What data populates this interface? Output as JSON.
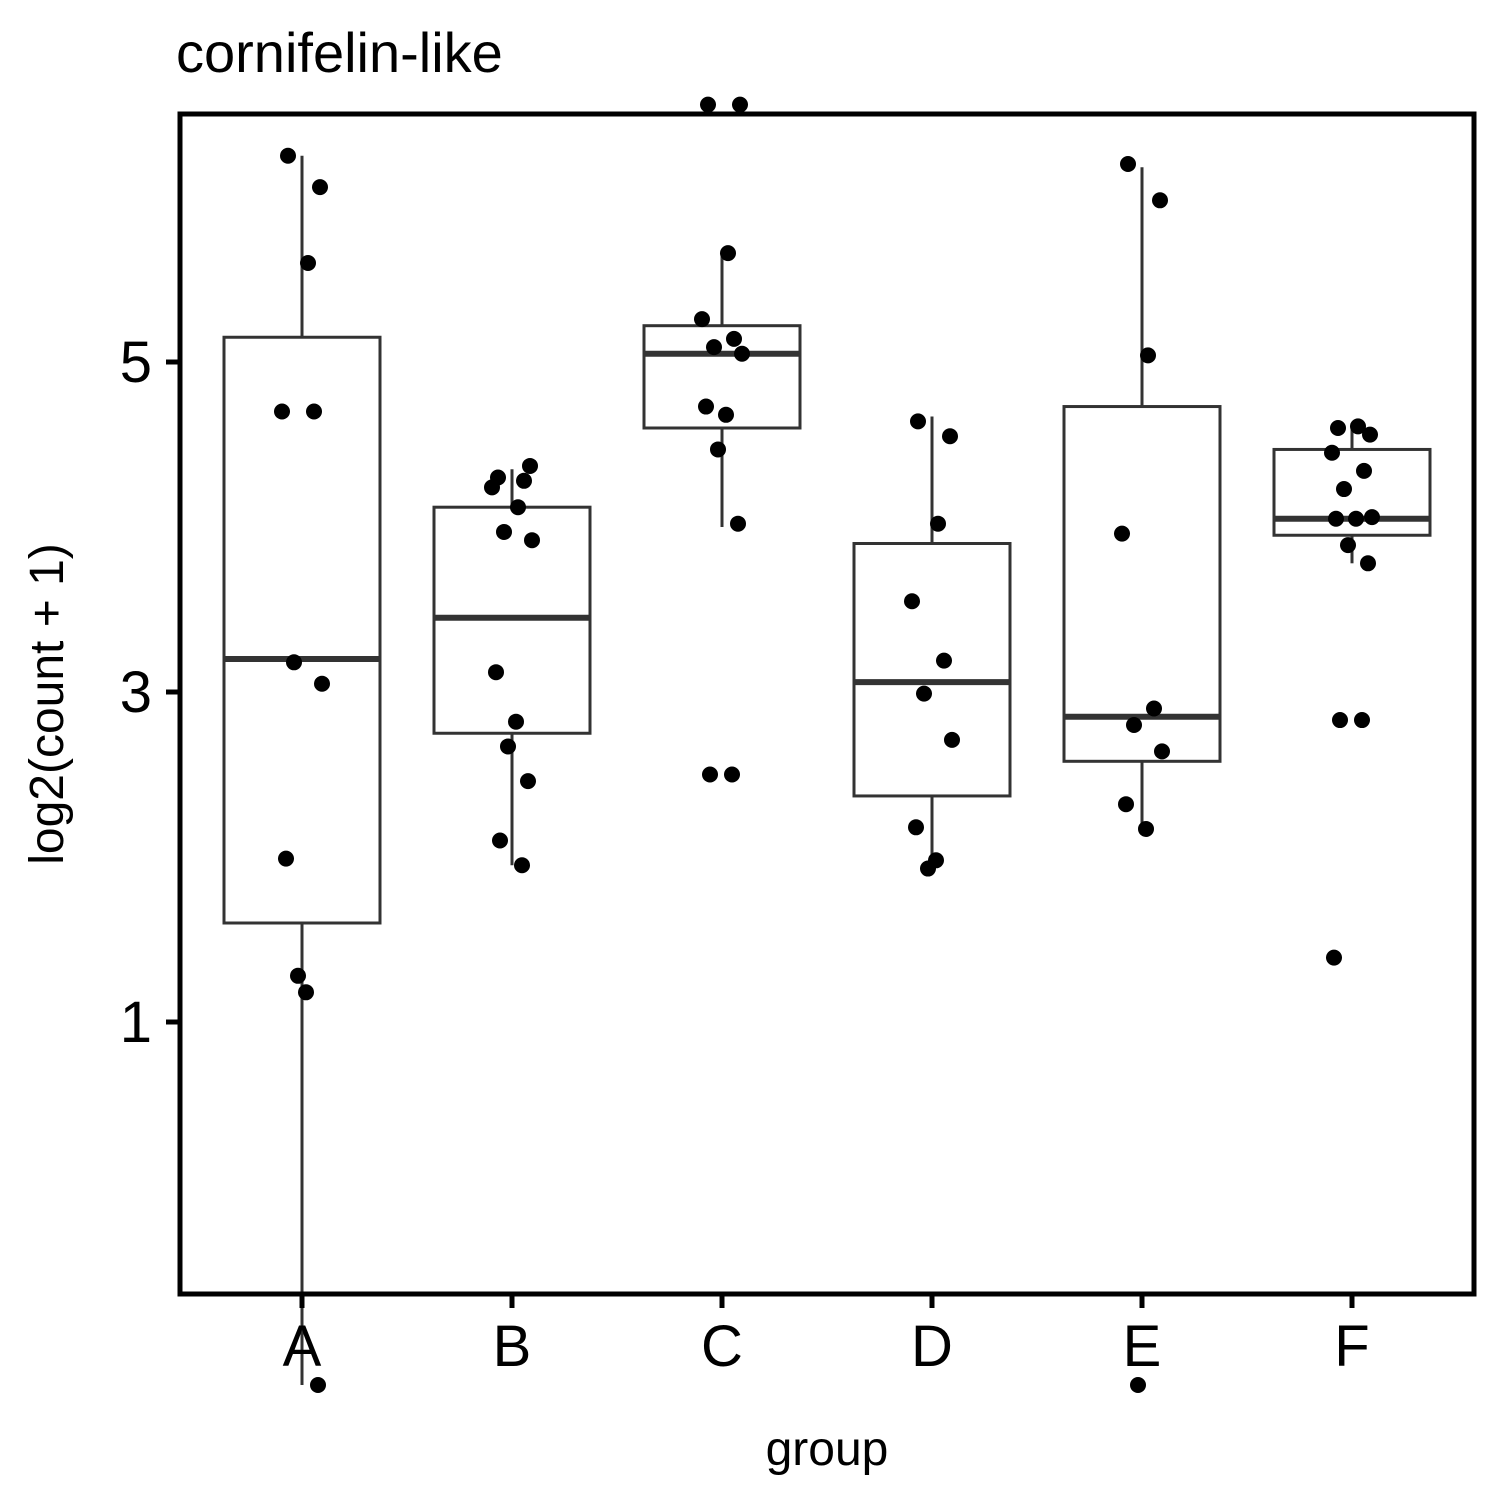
{
  "chart_data": {
    "type": "boxplot",
    "title": "cornifelin-like",
    "xlabel": "group",
    "ylabel": "log2(count + 1)",
    "categories": [
      "A",
      "B",
      "C",
      "D",
      "E",
      "F"
    ],
    "yticks": [
      1,
      3,
      5
    ],
    "ylim": [
      -1.3,
      6.65
    ],
    "grid": false,
    "legend": "none",
    "groups": [
      {
        "name": "A",
        "box": {
          "lower_whisker": -1.2,
          "q1": 1.6,
          "median": 3.2,
          "q3": 5.15,
          "upper_whisker": 6.25
        },
        "points": [
          6.25,
          6.06,
          5.6,
          4.7,
          4.7,
          3.18,
          3.05,
          1.99,
          1.18,
          1.28,
          -1.2
        ]
      },
      {
        "name": "B",
        "box": {
          "lower_whisker": 1.95,
          "q1": 2.75,
          "median": 3.45,
          "q3": 4.12,
          "upper_whisker": 4.35
        },
        "points": [
          4.3,
          4.37,
          4.12,
          4.24,
          4.28,
          3.97,
          3.92,
          3.12,
          2.82,
          2.67,
          2.46,
          2.1,
          1.95
        ]
      },
      {
        "name": "C",
        "box": {
          "lower_whisker": 4.0,
          "q1": 4.6,
          "median": 5.05,
          "q3": 5.22,
          "upper_whisker": 5.65
        },
        "points": [
          6.56,
          6.56,
          5.66,
          5.26,
          5.14,
          5.09,
          5.05,
          4.73,
          4.68,
          4.47,
          4.02,
          2.5,
          2.5
        ]
      },
      {
        "name": "D",
        "box": {
          "lower_whisker": 1.93,
          "q1": 2.37,
          "median": 3.06,
          "q3": 3.9,
          "upper_whisker": 4.67
        },
        "points": [
          4.64,
          4.55,
          4.02,
          3.55,
          3.19,
          2.99,
          2.71,
          2.18,
          1.98,
          1.93
        ]
      },
      {
        "name": "E",
        "box": {
          "lower_whisker": 2.17,
          "q1": 2.58,
          "median": 2.85,
          "q3": 4.73,
          "upper_whisker": 6.18
        },
        "points": [
          6.2,
          5.98,
          5.04,
          3.96,
          2.9,
          2.8,
          2.64,
          2.32,
          2.17,
          -1.2
        ]
      },
      {
        "name": "F",
        "box": {
          "lower_whisker": 3.78,
          "q1": 3.95,
          "median": 4.05,
          "q3": 4.47,
          "upper_whisker": 4.63
        },
        "points": [
          4.6,
          4.56,
          4.61,
          4.45,
          4.34,
          4.23,
          4.06,
          4.05,
          4.05,
          3.89,
          3.78,
          2.83,
          2.83,
          1.39
        ]
      }
    ]
  }
}
